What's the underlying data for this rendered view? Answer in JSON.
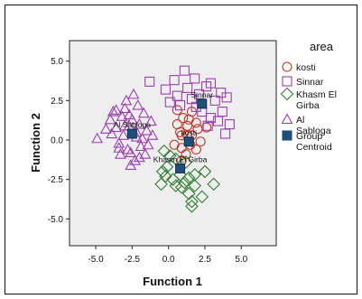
{
  "chart_data": {
    "type": "scatter",
    "title": "",
    "xlabel": "Function 1",
    "ylabel": "Function 2",
    "xlim": [
      -6.8,
      7.4
    ],
    "ylim": [
      -6.7,
      6.3
    ],
    "xticks": [
      -5.0,
      -2.5,
      0.0,
      2.5,
      5.0
    ],
    "xtick_labels": [
      "-5.0",
      "-2.5",
      "0.0",
      "2.5",
      "5.0"
    ],
    "yticks": [
      5.0,
      2.5,
      0.0,
      -2.5,
      -5.0
    ],
    "ytick_labels": [
      "5.0",
      "2.5",
      "0.0",
      "-2.5",
      "-5.0"
    ],
    "grid": false,
    "plot_background": "#eeeeee",
    "legend": {
      "title": "area",
      "position": "right",
      "entries": [
        {
          "label": "kosti",
          "marker": "circle",
          "color": "#c0392b"
        },
        {
          "label": "Sinnar",
          "marker": "square-open",
          "color": "#9b3fae"
        },
        {
          "label": "Khasm El Girba",
          "marker": "diamond",
          "color": "#2e7d32"
        },
        {
          "label": "Al Sabloga",
          "marker": "triangle",
          "color": "#9b3fae"
        },
        {
          "label": "Group Centroid",
          "marker": "square-filled",
          "color": "#1f4e79"
        }
      ]
    },
    "series": [
      {
        "name": "kosti",
        "marker": "circle",
        "color": "#c0392b",
        "points": [
          [
            0.6,
            1.9
          ],
          [
            1.0,
            1.4
          ],
          [
            0.6,
            1.0
          ],
          [
            1.3,
            0.9
          ],
          [
            0.9,
            0.3
          ],
          [
            1.6,
            0.3
          ],
          [
            2.0,
            0.7
          ],
          [
            1.5,
            -0.3
          ],
          [
            0.9,
            -0.5
          ],
          [
            1.9,
            -0.6
          ],
          [
            1.2,
            -0.9
          ],
          [
            0.4,
            -0.3
          ],
          [
            1.9,
            1.1
          ],
          [
            1.6,
            1.8
          ],
          [
            2.2,
            -0.1
          ],
          [
            0.8,
            0.5
          ],
          [
            0.9,
            -1.3
          ],
          [
            1.4,
            1.3
          ],
          [
            2.6,
            0.8
          ],
          [
            1.3,
            0.3
          ]
        ]
      },
      {
        "name": "Sinnar",
        "marker": "square",
        "color": "#9b3fae",
        "points": [
          [
            -1.3,
            3.7
          ],
          [
            0.4,
            3.8
          ],
          [
            1.8,
            3.9
          ],
          [
            2.9,
            3.6
          ],
          [
            3.6,
            3.0
          ],
          [
            1.3,
            3.3
          ],
          [
            0.6,
            2.8
          ],
          [
            2.1,
            2.9
          ],
          [
            3.2,
            2.5
          ],
          [
            4.0,
            2.7
          ],
          [
            2.3,
            1.8
          ],
          [
            2.9,
            1.4
          ],
          [
            3.4,
            1.2
          ],
          [
            0.8,
            2.2
          ],
          [
            1.6,
            2.6
          ],
          [
            -0.2,
            3.2
          ],
          [
            2.7,
            0.9
          ],
          [
            3.9,
            0.4
          ],
          [
            1.1,
            4.4
          ],
          [
            2.6,
            3.4
          ],
          [
            1.9,
            2.1
          ],
          [
            3.7,
            1.8
          ],
          [
            0.1,
            2.4
          ],
          [
            4.2,
            1.0
          ]
        ]
      },
      {
        "name": "Khasm El Girba",
        "marker": "diamond",
        "color": "#2e7d32",
        "points": [
          [
            -0.3,
            -0.7
          ],
          [
            0.5,
            -1.2
          ],
          [
            1.2,
            -1.4
          ],
          [
            0.8,
            -2.2
          ],
          [
            -0.2,
            -2.3
          ],
          [
            -0.5,
            -2.8
          ],
          [
            0.3,
            -2.5
          ],
          [
            1.1,
            -2.7
          ],
          [
            1.8,
            -2.9
          ],
          [
            1.4,
            -3.4
          ],
          [
            2.3,
            -3.6
          ],
          [
            1.6,
            -3.9
          ],
          [
            1.6,
            -4.2
          ],
          [
            3.1,
            -2.8
          ],
          [
            -0.1,
            -1.7
          ],
          [
            0.9,
            -3.0
          ],
          [
            0.1,
            -1.0
          ],
          [
            1.8,
            -2.2
          ],
          [
            0.5,
            -2.9
          ],
          [
            2.5,
            -2.0
          ],
          [
            -0.4,
            -2.0
          ],
          [
            1.4,
            -2.4
          ]
        ]
      },
      {
        "name": "Al Sabloga",
        "marker": "triangle",
        "color": "#9b3fae",
        "points": [
          [
            -4.9,
            0.1
          ],
          [
            -4.0,
            1.3
          ],
          [
            -3.8,
            1.8
          ],
          [
            -3.6,
            0.8
          ],
          [
            -3.4,
            -0.2
          ],
          [
            -3.2,
            1.5
          ],
          [
            -3.0,
            2.0
          ],
          [
            -3.1,
            0.3
          ],
          [
            -2.8,
            -0.6
          ],
          [
            -2.7,
            0.9
          ],
          [
            -2.5,
            1.3
          ],
          [
            -2.6,
            -0.8
          ],
          [
            -2.3,
            -1.3
          ],
          [
            -2.1,
            2.2
          ],
          [
            -2.0,
            1.0
          ],
          [
            -2.2,
            0.2
          ],
          [
            -1.9,
            -0.4
          ],
          [
            -1.7,
            1.7
          ],
          [
            -1.5,
            0.6
          ],
          [
            -1.4,
            -0.3
          ],
          [
            -1.2,
            1.2
          ],
          [
            -3.6,
            1.9
          ],
          [
            -3.3,
            -0.9
          ],
          [
            -2.9,
            2.5
          ],
          [
            -2.4,
            2.9
          ],
          [
            -2.0,
            -1.1
          ],
          [
            -1.8,
            0.1
          ],
          [
            -3.9,
            0.4
          ],
          [
            -2.6,
            -1.6
          ],
          [
            -3.4,
            -0.5
          ],
          [
            -2.7,
            1.6
          ],
          [
            -1.6,
            -0.9
          ],
          [
            -1.1,
            0.3
          ],
          [
            -4.3,
            0.7
          ],
          [
            -3.0,
            0.9
          ],
          [
            -2.2,
            0.5
          ]
        ]
      }
    ],
    "centroids": [
      {
        "name": "kosti",
        "label": "kosti",
        "x": 1.4,
        "y": -0.1
      },
      {
        "name": "Sinnar",
        "label": "Sinnar",
        "x": 2.3,
        "y": 2.3
      },
      {
        "name": "Khasm El Girba",
        "label": "Khasm El Girba",
        "x": 0.8,
        "y": -1.8
      },
      {
        "name": "Al Sabloga",
        "label": "Al Sabloga",
        "x": -2.5,
        "y": 0.4
      }
    ]
  }
}
